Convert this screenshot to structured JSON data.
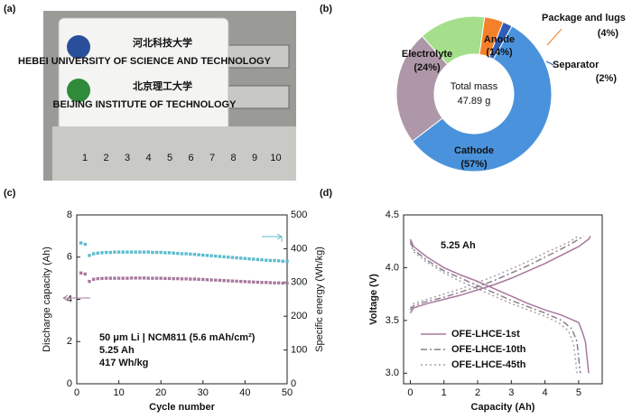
{
  "panel_labels": [
    "(a)",
    "(b)",
    "(c)",
    "(d)"
  ],
  "photo": {
    "logo_texts": [
      "河北科技大学",
      "HEBEI UNIVERSITY OF SCIENCE AND TECHNOLOGY",
      "北京理工大学",
      "BEIJING INSTITUTE OF TECHNOLOGY"
    ],
    "ruler": [
      "1",
      "2",
      "3",
      "4",
      "5",
      "6",
      "7",
      "8",
      "9",
      "10"
    ]
  },
  "chart_data": [
    {
      "type": "pie",
      "donut": true,
      "categories": [
        "Anode",
        "Package and lugs",
        "Separator",
        "Cathode",
        "Electrolyte"
      ],
      "values": [
        14,
        4,
        2,
        57,
        24
      ],
      "value_labels": [
        "(14%)",
        "(4%)",
        "(2%)",
        "(57%)",
        "(24%)"
      ],
      "colors": [
        "#a6df8c",
        "#f5802a",
        "#2f5db8",
        "#4a93dc",
        "#ae97a8"
      ],
      "center_label": [
        "Total mass",
        "47.89 g"
      ]
    },
    {
      "type": "scatter",
      "xlabel": "Cycle number",
      "ylabel": "Discharge capacity (Ah)",
      "y2label": "Specific energy (Wh/kg)",
      "x": [
        1,
        2,
        3,
        4,
        5,
        6,
        7,
        8,
        9,
        10,
        11,
        12,
        13,
        14,
        15,
        16,
        17,
        18,
        19,
        20,
        21,
        22,
        23,
        24,
        25,
        26,
        27,
        28,
        29,
        30,
        31,
        32,
        33,
        34,
        35,
        36,
        37,
        38,
        39,
        40,
        41,
        42,
        43,
        44,
        45,
        46,
        47,
        48,
        49,
        50
      ],
      "series": [
        {
          "name": "Discharge capacity",
          "color": "#a8789e",
          "values": [
            5.25,
            5.2,
            4.85,
            4.95,
            4.98,
            4.99,
            5.0,
            5.0,
            5.0,
            5.0,
            5.0,
            5.0,
            5.01,
            5.01,
            5.01,
            5.01,
            5.0,
            5.0,
            5.0,
            5.0,
            4.99,
            4.99,
            4.98,
            4.98,
            4.97,
            4.97,
            4.96,
            4.96,
            4.95,
            4.94,
            4.93,
            4.92,
            4.91,
            4.9,
            4.89,
            4.88,
            4.87,
            4.86,
            4.85,
            4.84,
            4.83,
            4.82,
            4.81,
            4.8,
            4.8,
            4.79,
            4.78,
            4.78,
            4.77,
            4.77
          ]
        },
        {
          "name": "Specific energy",
          "color": "#5bbccc",
          "axis": "y2",
          "values": [
            417,
            413,
            380,
            385,
            387,
            388,
            389,
            389,
            390,
            390,
            390,
            390,
            390,
            390,
            390,
            390,
            390,
            389,
            389,
            389,
            388,
            388,
            387,
            386,
            385,
            385,
            384,
            383,
            382,
            381,
            380,
            379,
            378,
            377,
            376,
            375,
            374,
            373,
            372,
            371,
            370,
            369,
            368,
            367,
            366,
            365,
            365,
            364,
            363,
            363
          ]
        }
      ],
      "xlim": [
        0,
        50
      ],
      "xticks": [
        0,
        10,
        20,
        30,
        40,
        50
      ],
      "ylim": [
        0,
        8
      ],
      "yticks": [
        0,
        2,
        4,
        6,
        8
      ],
      "y2lim": [
        0,
        500
      ],
      "y2ticks": [
        0,
        100,
        200,
        300,
        400,
        500
      ],
      "annotations": [
        "50 μm Li | NCM811 (5.6 mAh/cm²)",
        "5.25 Ah",
        "417 Wh/kg"
      ]
    },
    {
      "type": "line",
      "xlabel": "Capacity (Ah)",
      "ylabel": "Voltage (V)",
      "series": [
        {
          "name": "OFE-LHCE-1st",
          "color": "#a8789e",
          "dash": "solid",
          "x": [
            0,
            0.1,
            0.5,
            1,
            1.5,
            2,
            2.5,
            3,
            3.5,
            4,
            4.5,
            5,
            5.3,
            5.35,
            null,
            0,
            0.1,
            0.5,
            1,
            1.5,
            2,
            2.5,
            3,
            3.5,
            4,
            4.5,
            5,
            5.1,
            5.2,
            5.25,
            5.3
          ],
          "values": [
            3.57,
            3.62,
            3.66,
            3.7,
            3.74,
            3.79,
            3.84,
            3.9,
            3.97,
            4.04,
            4.12,
            4.2,
            4.27,
            4.3,
            null,
            4.27,
            4.2,
            4.1,
            4.0,
            3.93,
            3.87,
            3.8,
            3.73,
            3.66,
            3.6,
            3.55,
            3.48,
            3.4,
            3.3,
            3.15,
            3.0
          ]
        },
        {
          "name": "OFE-LHCE-10th",
          "color": "#8c8088",
          "dash": "dashdot",
          "x": [
            0,
            0.1,
            0.5,
            1,
            1.5,
            2,
            2.5,
            3,
            3.5,
            4,
            4.5,
            4.9,
            5.15,
            null,
            0,
            0.1,
            0.5,
            1,
            1.5,
            2,
            2.5,
            3,
            3.5,
            4,
            4.5,
            4.8,
            4.95,
            5.0,
            5.05
          ],
          "values": [
            3.6,
            3.64,
            3.68,
            3.72,
            3.77,
            3.82,
            3.88,
            3.95,
            4.02,
            4.1,
            4.18,
            4.25,
            4.3,
            null,
            4.25,
            4.17,
            4.07,
            3.97,
            3.9,
            3.83,
            3.76,
            3.69,
            3.63,
            3.57,
            3.5,
            3.42,
            3.3,
            3.15,
            3.0
          ]
        },
        {
          "name": "OFE-LHCE-45th",
          "color": "#a8a0a6",
          "dash": "dotted",
          "x": [
            0,
            0.1,
            0.5,
            1,
            1.5,
            2,
            2.5,
            3,
            3.5,
            4,
            4.5,
            4.8,
            5.0,
            null,
            0,
            0.1,
            0.5,
            1,
            1.5,
            2,
            2.5,
            3,
            3.5,
            4,
            4.4,
            4.7,
            4.85,
            4.9,
            4.95
          ],
          "values": [
            3.62,
            3.66,
            3.7,
            3.75,
            3.8,
            3.86,
            3.92,
            3.99,
            4.06,
            4.14,
            4.21,
            4.26,
            4.3,
            null,
            4.23,
            4.15,
            4.05,
            3.95,
            3.87,
            3.8,
            3.73,
            3.66,
            3.6,
            3.54,
            3.48,
            3.4,
            3.28,
            3.15,
            3.0
          ]
        }
      ],
      "xlim": [
        -0.2,
        5.7
      ],
      "xticks": [
        0,
        1,
        2,
        3,
        4,
        5
      ],
      "ylim": [
        2.9,
        4.5
      ],
      "yticks": [
        {
          "value": 3,
          "label": "3.0"
        },
        3.5,
        {
          "value": 4,
          "label": "4.0"
        },
        4.5
      ],
      "annotations": [
        "5.25 Ah"
      ]
    }
  ]
}
